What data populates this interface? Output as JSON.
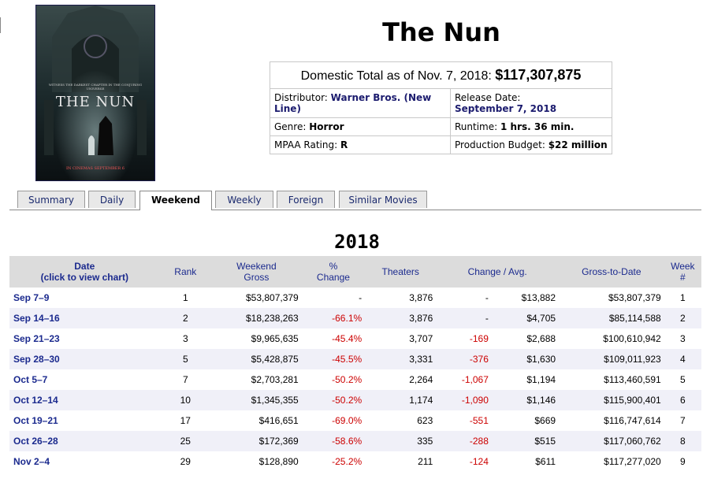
{
  "movie": {
    "title": "The Nun",
    "poster": {
      "tagline": "WITNESS THE DARKEST CHAPTER IN THE CONJURING UNIVERSE",
      "title": "THE NUN",
      "release": "IN CINEMAS SEPTEMBER 6"
    }
  },
  "info": {
    "total_label": "Domestic Total as of Nov. 7, 2018:",
    "total_value": "$117,307,875",
    "distributor_label": "Distributor:",
    "distributor_value": "Warner Bros. (New Line)",
    "release_label": "Release Date:",
    "release_value": "September 7, 2018",
    "genre_label": "Genre:",
    "genre_value": "Horror",
    "runtime_label": "Runtime:",
    "runtime_value": "1 hrs. 36 min.",
    "mpaa_label": "MPAA Rating:",
    "mpaa_value": "R",
    "budget_label": "Production Budget:",
    "budget_value": "$22 million"
  },
  "tabs": [
    "Summary",
    "Daily",
    "Weekend",
    "Weekly",
    "Foreign",
    "Similar Movies"
  ],
  "active_tab": "Weekend",
  "year": "2018",
  "table": {
    "headers": {
      "date_line1": "Date",
      "date_line2": "(click to view chart)",
      "rank": "Rank",
      "gross_line1": "Weekend",
      "gross_line2": "Gross",
      "change_line1": "%",
      "change_line2": "Change",
      "theaters": "Theaters",
      "change_avg": "Change / Avg.",
      "gtd": "Gross-to-Date",
      "week_line1": "Week",
      "week_line2": "#"
    },
    "rows": [
      {
        "date": "Sep 7–9",
        "rank": "1",
        "gross": "$53,807,379",
        "pct": "-",
        "theaters": "3,876",
        "tchange": "-",
        "avg": "$13,882",
        "gtd": "$53,807,379",
        "week": "1"
      },
      {
        "date": "Sep 14–16",
        "rank": "2",
        "gross": "$18,238,263",
        "pct": "-66.1%",
        "theaters": "3,876",
        "tchange": "-",
        "avg": "$4,705",
        "gtd": "$85,114,588",
        "week": "2"
      },
      {
        "date": "Sep 21–23",
        "rank": "3",
        "gross": "$9,965,635",
        "pct": "-45.4%",
        "theaters": "3,707",
        "tchange": "-169",
        "avg": "$2,688",
        "gtd": "$100,610,942",
        "week": "3"
      },
      {
        "date": "Sep 28–30",
        "rank": "5",
        "gross": "$5,428,875",
        "pct": "-45.5%",
        "theaters": "3,331",
        "tchange": "-376",
        "avg": "$1,630",
        "gtd": "$109,011,923",
        "week": "4"
      },
      {
        "date": "Oct 5–7",
        "rank": "7",
        "gross": "$2,703,281",
        "pct": "-50.2%",
        "theaters": "2,264",
        "tchange": "-1,067",
        "avg": "$1,194",
        "gtd": "$113,460,591",
        "week": "5"
      },
      {
        "date": "Oct 12–14",
        "rank": "10",
        "gross": "$1,345,355",
        "pct": "-50.2%",
        "theaters": "1,174",
        "tchange": "-1,090",
        "avg": "$1,146",
        "gtd": "$115,900,401",
        "week": "6"
      },
      {
        "date": "Oct 19–21",
        "rank": "17",
        "gross": "$416,651",
        "pct": "-69.0%",
        "theaters": "623",
        "tchange": "-551",
        "avg": "$669",
        "gtd": "$116,747,614",
        "week": "7"
      },
      {
        "date": "Oct 26–28",
        "rank": "25",
        "gross": "$172,369",
        "pct": "-58.6%",
        "theaters": "335",
        "tchange": "-288",
        "avg": "$515",
        "gtd": "$117,060,762",
        "week": "8"
      },
      {
        "date": "Nov 2–4",
        "rank": "29",
        "gross": "$128,890",
        "pct": "-25.2%",
        "theaters": "211",
        "tchange": "-124",
        "avg": "$611",
        "gtd": "$117,277,020",
        "week": "9"
      }
    ]
  },
  "colors": {
    "link": "#1b2a8e",
    "negative": "#cc0000",
    "header_bg": "#dcdcdc",
    "alt_row_bg": "#f0f0f8"
  }
}
